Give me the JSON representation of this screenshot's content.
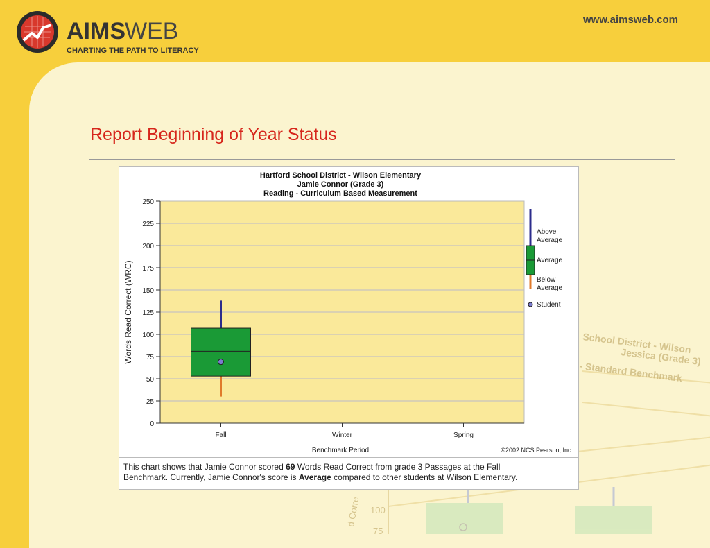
{
  "header": {
    "brand_bold": "AIMS",
    "brand_light": "WEB",
    "tagline": "CHARTING THE PATH TO LITERACY",
    "url": "www.aimsweb.com"
  },
  "slide": {
    "title": "Report Beginning of Year Status"
  },
  "chart_data": {
    "type": "boxplot",
    "title_lines": [
      "Hartford School District - Wilson Elementary",
      "Jamie Connor (Grade 3)",
      "Reading - Curriculum Based Measurement"
    ],
    "xlabel": "Benchmark Period",
    "ylabel": "Words Read Correct (WRC)",
    "ylim": [
      0,
      250
    ],
    "yticks": [
      0,
      25,
      50,
      75,
      100,
      125,
      150,
      175,
      200,
      225,
      250
    ],
    "categories": [
      "Fall",
      "Winter",
      "Spring"
    ],
    "boxes": [
      {
        "category": "Fall",
        "low": 30,
        "q1": 53,
        "median": 81,
        "q3": 107,
        "high": 138,
        "student": 69
      }
    ],
    "legend": [
      {
        "label_lines": [
          "Above",
          "Average"
        ],
        "color": "#2c2c8c"
      },
      {
        "label_lines": [
          "Average"
        ],
        "color": "#1a9a36"
      },
      {
        "label_lines": [
          "Below",
          "Average"
        ],
        "color": "#e07a2a"
      },
      {
        "label_lines": [
          "Student"
        ],
        "color": "#7b7bd0"
      }
    ],
    "copyright": "©2002 NCS Pearson, Inc.",
    "plot_bg": "#fae99a",
    "grid": true
  },
  "caption": {
    "line1_pre": "This chart shows that Jamie Connor scored ",
    "line1_bold": "69",
    "line1_post": " Words Read Correct from grade 3 Passages at the Fall",
    "line2_pre": "Benchmark. Currently, Jamie Connor's score is ",
    "line2_bold": "Average",
    "line2_post": " compared to other students at Wilson Elementary."
  },
  "background_chart": {
    "title_lines": [
      "School District - Wilson",
      "Jessica (Grade 3)",
      "- Standard Benchmark"
    ],
    "tick_labels": [
      "100",
      "75"
    ],
    "axis_fragment": "d Corre"
  }
}
